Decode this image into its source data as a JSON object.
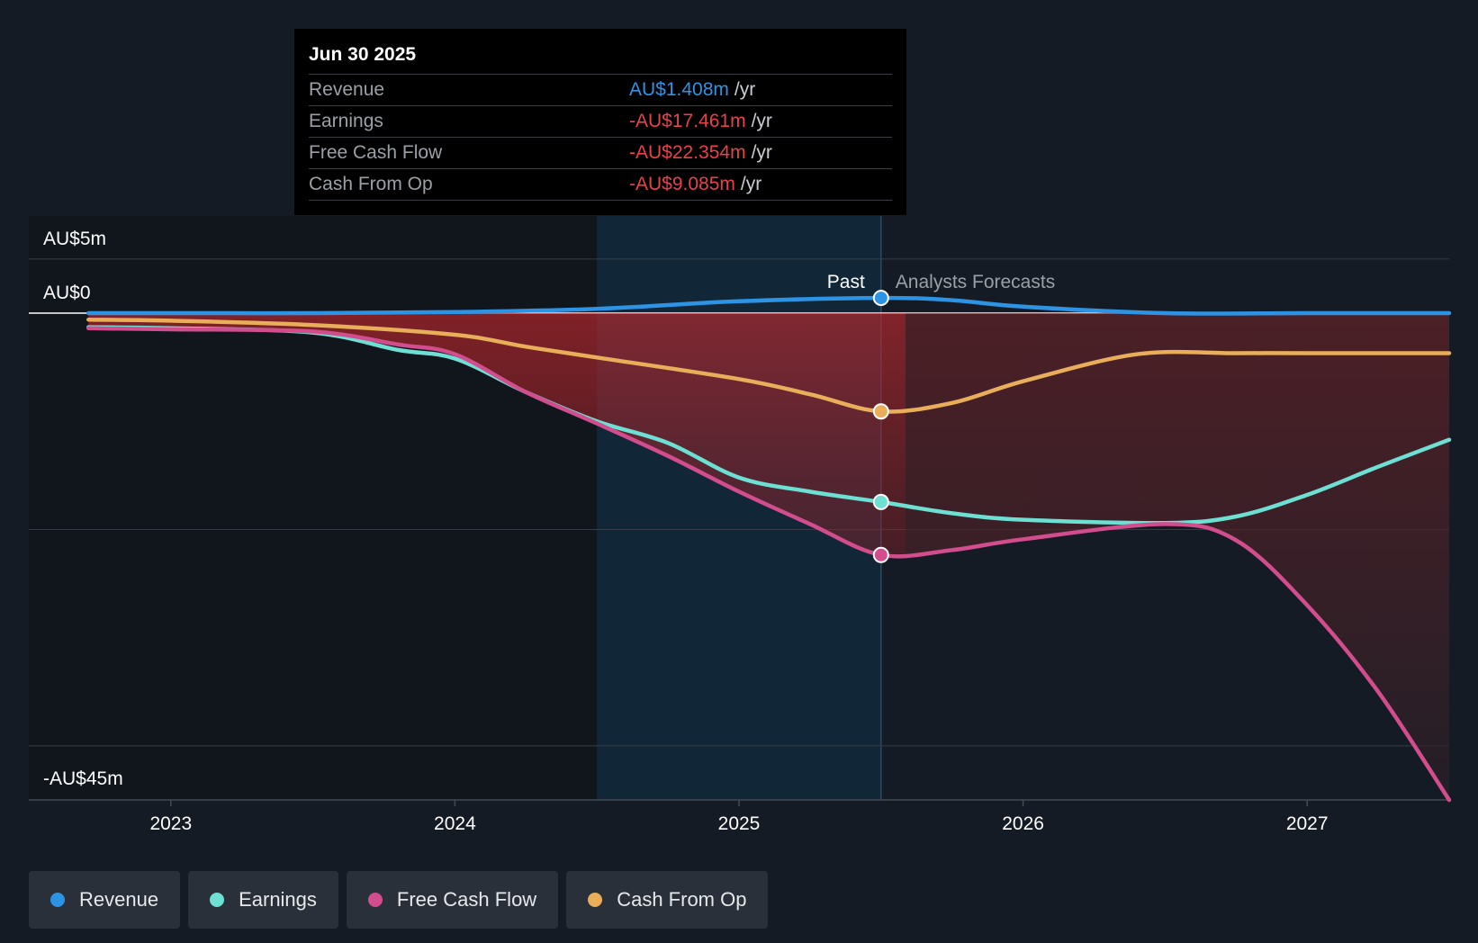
{
  "tooltip": {
    "date": "Jun 30 2025",
    "rows": [
      {
        "label": "Revenue",
        "value": "AU$1.408m",
        "unit": "/yr",
        "color": "#2d93e4"
      },
      {
        "label": "Earnings",
        "value": "-AU$17.461m",
        "unit": "/yr",
        "color": "#e8414a"
      },
      {
        "label": "Free Cash Flow",
        "value": "-AU$22.354m",
        "unit": "/yr",
        "color": "#e8414a"
      },
      {
        "label": "Cash From Op",
        "value": "-AU$9.085m",
        "unit": "/yr",
        "color": "#e8414a"
      }
    ]
  },
  "chart_data": {
    "type": "line",
    "ylim": [
      -45,
      5
    ],
    "xlim": [
      2022.5,
      2027.5
    ],
    "y_ticks": [
      {
        "value": 5,
        "label": "AU$5m"
      },
      {
        "value": 0,
        "label": "AU$0"
      },
      {
        "value": -45,
        "label": "-AU$45m"
      }
    ],
    "x_ticks": [
      {
        "value": 2023,
        "label": "2023"
      },
      {
        "value": 2024,
        "label": "2024"
      },
      {
        "value": 2025,
        "label": "2025"
      },
      {
        "value": 2026,
        "label": "2026"
      },
      {
        "value": 2027,
        "label": "2027"
      }
    ],
    "past_label": "Past",
    "forecast_label": "Analysts Forecasts",
    "divider_x": 2025.5,
    "highlight_start": 2024.5,
    "series": [
      {
        "name": "Revenue",
        "color": "#2d93e4",
        "points": [
          [
            2022.71,
            0
          ],
          [
            2023.0,
            0
          ],
          [
            2023.5,
            0
          ],
          [
            2024.0,
            0.1
          ],
          [
            2024.5,
            0.4
          ],
          [
            2025.0,
            1.1
          ],
          [
            2025.5,
            1.408
          ],
          [
            2025.75,
            1.2
          ],
          [
            2026.0,
            0.6
          ],
          [
            2026.5,
            0
          ],
          [
            2027.0,
            0
          ],
          [
            2027.5,
            0
          ]
        ]
      },
      {
        "name": "Earnings",
        "color": "#6edfd3",
        "points": [
          [
            2022.71,
            -1.3
          ],
          [
            2023.0,
            -1.4
          ],
          [
            2023.5,
            -1.8
          ],
          [
            2023.8,
            -3.4
          ],
          [
            2024.0,
            -4.2
          ],
          [
            2024.25,
            -7.3
          ],
          [
            2024.5,
            -10.0
          ],
          [
            2024.75,
            -12.0
          ],
          [
            2025.0,
            -15.2
          ],
          [
            2025.25,
            -16.5
          ],
          [
            2025.5,
            -17.461
          ],
          [
            2025.75,
            -18.5
          ],
          [
            2026.0,
            -19.1
          ],
          [
            2026.5,
            -19.4
          ],
          [
            2026.75,
            -18.8
          ],
          [
            2027.0,
            -16.8
          ],
          [
            2027.25,
            -14.2
          ],
          [
            2027.5,
            -11.7
          ]
        ]
      },
      {
        "name": "Free Cash Flow",
        "color": "#d14d8e",
        "points": [
          [
            2022.71,
            -1.4
          ],
          [
            2023.0,
            -1.5
          ],
          [
            2023.5,
            -1.7
          ],
          [
            2023.8,
            -2.9
          ],
          [
            2024.0,
            -3.8
          ],
          [
            2024.25,
            -7.3
          ],
          [
            2024.5,
            -10.2
          ],
          [
            2024.75,
            -13.2
          ],
          [
            2025.0,
            -16.5
          ],
          [
            2025.25,
            -19.5
          ],
          [
            2025.5,
            -22.354
          ],
          [
            2025.75,
            -21.9
          ],
          [
            2026.0,
            -20.9
          ],
          [
            2026.5,
            -19.5
          ],
          [
            2026.75,
            -21.0
          ],
          [
            2027.0,
            -27.0
          ],
          [
            2027.25,
            -35.0
          ],
          [
            2027.5,
            -45.0
          ]
        ]
      },
      {
        "name": "Cash From Op",
        "color": "#e9ae5a",
        "points": [
          [
            2022.71,
            -0.6
          ],
          [
            2023.0,
            -0.7
          ],
          [
            2023.5,
            -1.1
          ],
          [
            2024.0,
            -2.0
          ],
          [
            2024.25,
            -3.1
          ],
          [
            2024.5,
            -4.1
          ],
          [
            2025.0,
            -6.1
          ],
          [
            2025.25,
            -7.5
          ],
          [
            2025.5,
            -9.085
          ],
          [
            2025.75,
            -8.3
          ],
          [
            2026.0,
            -6.3
          ],
          [
            2026.4,
            -3.8
          ],
          [
            2026.75,
            -3.7
          ],
          [
            2027.0,
            -3.7
          ],
          [
            2027.5,
            -3.7
          ]
        ]
      }
    ],
    "highlight_values": [
      {
        "series": "Revenue",
        "x": 2025.5,
        "y": 1.408
      },
      {
        "series": "Cash From Op",
        "x": 2025.5,
        "y": -9.085
      },
      {
        "series": "Earnings",
        "x": 2025.5,
        "y": -17.461
      },
      {
        "series": "Free Cash Flow",
        "x": 2025.5,
        "y": -22.354
      }
    ]
  },
  "legend": [
    {
      "label": "Revenue",
      "color": "#2d93e4"
    },
    {
      "label": "Earnings",
      "color": "#6edfd3"
    },
    {
      "label": "Free Cash Flow",
      "color": "#d14d8e"
    },
    {
      "label": "Cash From Op",
      "color": "#e9ae5a"
    }
  ]
}
